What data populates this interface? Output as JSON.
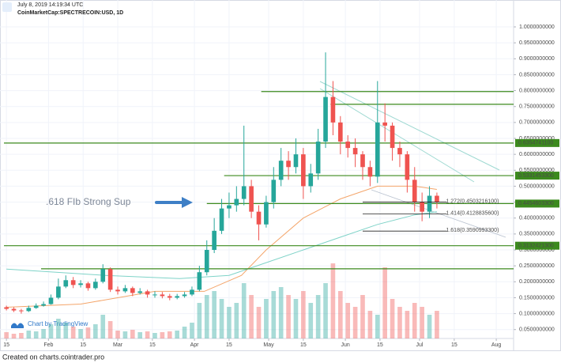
{
  "chart_data": {
    "type": "candlestick",
    "timestamp": "July 8, 2019 14:19:34 UTC",
    "title": "CoinMarketCap:SPECTRECOIN:USD, 1D",
    "annotation": ".618 FIb Strong Sup",
    "watermark": "Chart by TradingView",
    "footer": "Created on charts.cointrader.pro",
    "up_color": "#26a69a",
    "down_color": "#ef5350",
    "x": [
      0,
      3,
      6,
      9,
      12,
      15,
      18,
      21,
      24,
      27,
      30,
      33,
      36,
      39,
      42,
      45,
      48,
      51,
      54,
      57,
      60,
      63,
      66,
      69,
      72,
      75,
      78,
      81,
      84,
      87,
      90,
      93,
      96,
      99,
      102,
      105,
      108,
      111,
      114,
      117,
      120,
      123,
      126,
      129,
      132,
      135,
      138,
      141,
      144,
      147,
      150,
      153,
      156,
      159,
      162,
      165,
      168,
      171,
      174
    ],
    "open": [
      0.12,
      0.115,
      0.11,
      0.108,
      0.118,
      0.125,
      0.13,
      0.15,
      0.185,
      0.205,
      0.19,
      0.195,
      0.18,
      0.2,
      0.24,
      0.175,
      0.17,
      0.18,
      0.165,
      0.17,
      0.16,
      0.16,
      0.155,
      0.15,
      0.155,
      0.16,
      0.175,
      0.23,
      0.3,
      0.36,
      0.43,
      0.44,
      0.46,
      0.5,
      0.42,
      0.38,
      0.45,
      0.52,
      0.58,
      0.56,
      0.6,
      0.5,
      0.54,
      0.64,
      0.78,
      0.7,
      0.64,
      0.62,
      0.6,
      0.56,
      0.53,
      0.7,
      0.69,
      0.62,
      0.6,
      0.52,
      0.45,
      0.42,
      0.47
    ],
    "high": [
      0.125,
      0.12,
      0.115,
      0.125,
      0.132,
      0.138,
      0.16,
      0.21,
      0.22,
      0.215,
      0.205,
      0.2,
      0.21,
      0.255,
      0.245,
      0.185,
      0.19,
      0.185,
      0.18,
      0.175,
      0.17,
      0.168,
      0.162,
      0.162,
      0.168,
      0.185,
      0.25,
      0.33,
      0.4,
      0.46,
      0.48,
      0.5,
      0.69,
      0.52,
      0.44,
      0.47,
      0.56,
      0.62,
      0.61,
      0.65,
      0.62,
      0.57,
      0.68,
      0.92,
      0.83,
      0.72,
      0.66,
      0.65,
      0.61,
      0.58,
      0.83,
      0.76,
      0.7,
      0.64,
      0.61,
      0.56,
      0.48,
      0.5,
      0.48
    ],
    "low": [
      0.11,
      0.105,
      0.1,
      0.105,
      0.115,
      0.122,
      0.128,
      0.145,
      0.18,
      0.18,
      0.182,
      0.172,
      0.175,
      0.195,
      0.168,
      0.16,
      0.165,
      0.155,
      0.16,
      0.15,
      0.15,
      0.148,
      0.142,
      0.145,
      0.15,
      0.155,
      0.17,
      0.22,
      0.29,
      0.35,
      0.4,
      0.42,
      0.44,
      0.4,
      0.33,
      0.37,
      0.43,
      0.5,
      0.52,
      0.54,
      0.46,
      0.48,
      0.52,
      0.62,
      0.66,
      0.6,
      0.59,
      0.56,
      0.52,
      0.5,
      0.51,
      0.64,
      0.58,
      0.56,
      0.48,
      0.42,
      0.39,
      0.4,
      0.43
    ],
    "close": [
      0.115,
      0.11,
      0.108,
      0.118,
      0.125,
      0.13,
      0.15,
      0.185,
      0.205,
      0.19,
      0.195,
      0.18,
      0.2,
      0.24,
      0.175,
      0.17,
      0.18,
      0.165,
      0.17,
      0.16,
      0.16,
      0.155,
      0.15,
      0.155,
      0.16,
      0.175,
      0.23,
      0.3,
      0.36,
      0.43,
      0.44,
      0.46,
      0.5,
      0.42,
      0.38,
      0.45,
      0.52,
      0.58,
      0.56,
      0.6,
      0.5,
      0.54,
      0.64,
      0.78,
      0.7,
      0.64,
      0.62,
      0.6,
      0.56,
      0.53,
      0.7,
      0.69,
      0.62,
      0.6,
      0.52,
      0.45,
      0.42,
      0.47,
      0.45
    ],
    "volume": [
      8,
      6,
      7,
      10,
      9,
      12,
      18,
      25,
      20,
      15,
      12,
      14,
      18,
      30,
      22,
      10,
      9,
      11,
      8,
      9,
      7,
      8,
      9,
      10,
      15,
      20,
      45,
      55,
      60,
      50,
      40,
      45,
      70,
      55,
      40,
      50,
      60,
      65,
      55,
      50,
      60,
      45,
      55,
      70,
      95,
      60,
      45,
      40,
      55,
      35,
      30,
      90,
      50,
      40,
      35,
      45,
      40,
      30,
      35
    ],
    "vlim": [
      0,
      100
    ],
    "ma": [
      {
        "color": "#f4a56a",
        "x": [
          0,
          30,
          60,
          80,
          95,
          105,
          120,
          135,
          150,
          165,
          174
        ],
        "values": [
          0.12,
          0.13,
          0.17,
          0.17,
          0.22,
          0.3,
          0.4,
          0.46,
          0.5,
          0.5,
          0.49
        ]
      },
      {
        "color": "#7fd3c8",
        "x": [
          0,
          40,
          70,
          90,
          105,
          120,
          135,
          150,
          165,
          174
        ],
        "values": [
          0.24,
          0.22,
          0.21,
          0.22,
          0.26,
          0.3,
          0.34,
          0.38,
          0.41,
          0.42
        ]
      }
    ],
    "level_color": "#3c8a1e",
    "levels": [
      {
        "value": 0.797,
        "start": 103
      },
      {
        "value": 0.757,
        "start": 131
      },
      {
        "value": 0.63547411,
        "label": "0.6354741100",
        "start": -1
      },
      {
        "value": 0.53314533,
        "label": "0.5331453300",
        "start": 88
      },
      {
        "value": 0.44546033,
        "label": "0.4454603300",
        "start": 81
      },
      {
        "value": 0.31324213,
        "label": "0.3132421300",
        "start": -1
      },
      {
        "value": 0.2407,
        "start": 14
      }
    ],
    "fib": [
      {
        "value": 0.45032161,
        "label": "1.272(0.4503216100)",
        "start": 144,
        "end": 178
      },
      {
        "value": 0.41288356,
        "label": "1.414(0.4128835600)",
        "start": 144,
        "end": 178
      },
      {
        "value": 0.35909933,
        "label": "1.618(0.3590993300)",
        "start": 144,
        "end": 178
      }
    ],
    "xlim": [
      -1,
      205
    ],
    "xticks": [
      {
        "value": 0,
        "label": "15"
      },
      {
        "value": 17,
        "label": "Feb"
      },
      {
        "value": 31,
        "label": "15"
      },
      {
        "value": 45,
        "label": "Mar"
      },
      {
        "value": 59,
        "label": "15"
      },
      {
        "value": 76,
        "label": "Apr"
      },
      {
        "value": 90,
        "label": "15"
      },
      {
        "value": 106,
        "label": "May"
      },
      {
        "value": 120,
        "label": "15"
      },
      {
        "value": 137,
        "label": "Jun"
      },
      {
        "value": 151,
        "label": "15"
      },
      {
        "value": 167,
        "label": "Jul"
      },
      {
        "value": 181,
        "label": "15"
      },
      {
        "value": 198,
        "label": "Aug"
      }
    ],
    "ylim": [
      0.022,
      1.072
    ],
    "yticks": [
      {
        "value": 0.05,
        "label": "0.0500000000"
      },
      {
        "value": 0.1,
        "label": "0.1000000000"
      },
      {
        "value": 0.15,
        "label": "0.1500000000"
      },
      {
        "value": 0.2,
        "label": "0.2000000000"
      },
      {
        "value": 0.25,
        "label": "0.2500000000"
      },
      {
        "value": 0.3,
        "label": "0.3000000000"
      },
      {
        "value": 0.35,
        "label": "0.3500000000"
      },
      {
        "value": 0.4,
        "label": "0.4000000000"
      },
      {
        "value": 0.45,
        "label": "0.4500000000"
      },
      {
        "value": 0.5,
        "label": "0.5000000000"
      },
      {
        "value": 0.55,
        "label": "0.5500000000"
      },
      {
        "value": 0.6,
        "label": "0.6000000000"
      },
      {
        "value": 0.65,
        "label": "0.6500000000"
      },
      {
        "value": 0.7,
        "label": "0.7000000000"
      },
      {
        "value": 0.75,
        "label": "0.7500000000"
      },
      {
        "value": 0.8,
        "label": "0.8000000000"
      },
      {
        "value": 0.85,
        "label": "0.8500000000"
      },
      {
        "value": 0.9,
        "label": "0.9000000000"
      },
      {
        "value": 0.95,
        "label": "0.9500000000"
      },
      {
        "value": 1,
        "label": "1.0000000000"
      }
    ],
    "grid": true
  }
}
